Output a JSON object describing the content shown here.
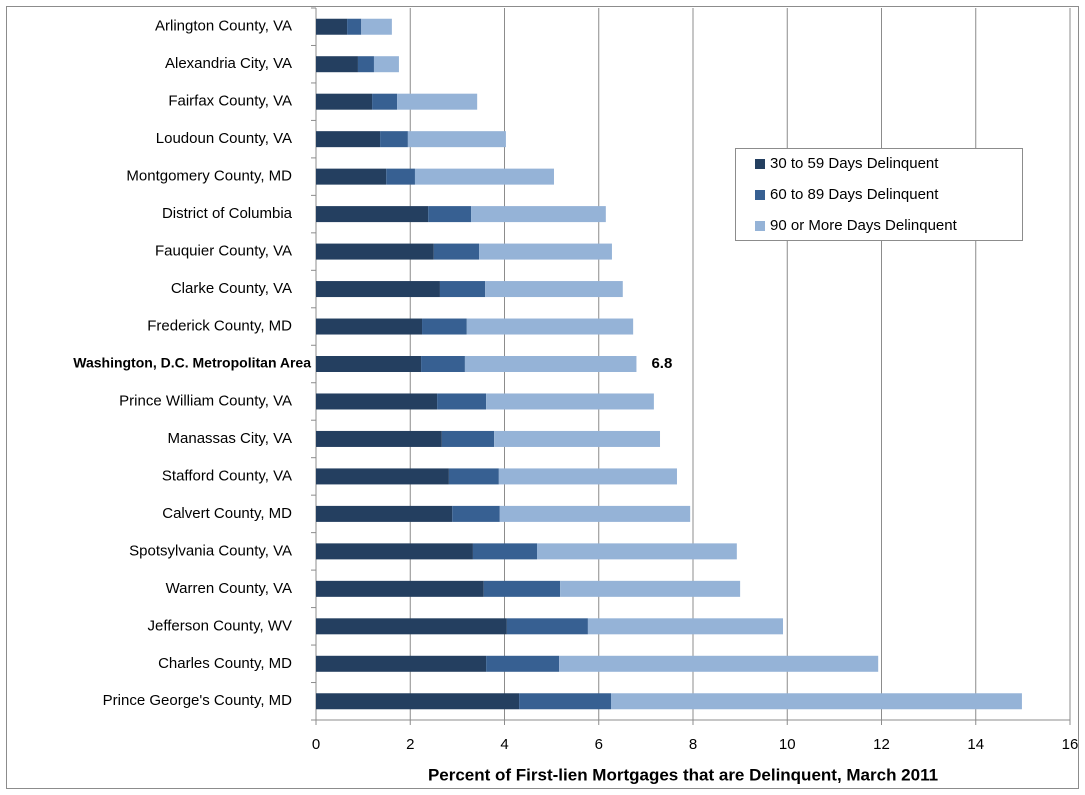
{
  "chart_data": {
    "type": "stacked-barh",
    "x_label": "Percent of First-lien Mortgages that are Delinquent, March 2011",
    "categories": [
      "Arlington County, VA",
      "Alexandria City, VA",
      "Fairfax County, VA",
      "Loudoun County, VA",
      "Montgomery County, MD",
      "District of Columbia",
      "Fauquier County, VA",
      "Clarke County, VA",
      "Frederick County, MD",
      "Washington, D.C.  Metropolitan Area",
      "Prince William County, VA",
      "Manassas City, VA",
      "Stafford County, VA",
      "Calvert County, MD",
      "Spotsylvania County, VA",
      "Warren County, VA",
      "Jefferson County, WV",
      "Charles County, MD",
      "Prince George's County, MD"
    ],
    "series": [
      {
        "name": "30 to 59 Days Delinquent",
        "color": "#243f60",
        "values": [
          0.66,
          0.89,
          1.19,
          1.36,
          1.49,
          2.38,
          2.5,
          2.63,
          2.25,
          2.23,
          2.57,
          2.67,
          2.82,
          2.89,
          3.33,
          3.56,
          4.05,
          3.61,
          4.31
        ]
      },
      {
        "name": "60 to 89 Days Delinquent",
        "color": "#376092",
        "values": [
          0.3,
          0.34,
          0.53,
          0.59,
          0.61,
          0.91,
          0.96,
          0.96,
          0.95,
          0.93,
          1.04,
          1.11,
          1.06,
          1.01,
          1.36,
          1.62,
          1.72,
          1.55,
          1.95
        ]
      },
      {
        "name": "90 or More Days Delinquent",
        "color": "#95b3d7",
        "values": [
          0.65,
          0.53,
          1.7,
          2.08,
          2.95,
          2.86,
          2.82,
          2.92,
          3.53,
          3.64,
          3.56,
          3.52,
          3.78,
          4.04,
          4.24,
          3.82,
          4.14,
          6.77,
          8.72
        ]
      }
    ],
    "total_labels": [
      null,
      null,
      null,
      null,
      null,
      null,
      null,
      null,
      null,
      6.8,
      null,
      null,
      null,
      null,
      null,
      null,
      null,
      null,
      null
    ],
    "xlim": [
      0,
      16
    ],
    "xticks": [
      0,
      2,
      4,
      6,
      8,
      10,
      12,
      14,
      16
    ],
    "grid": true
  }
}
